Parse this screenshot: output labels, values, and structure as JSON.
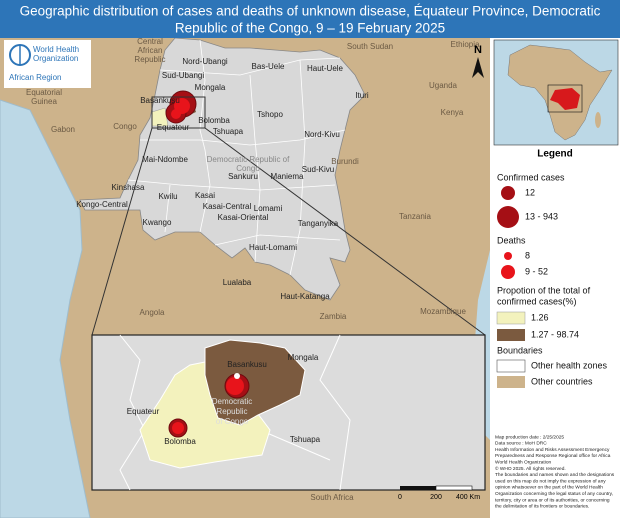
{
  "title": [
    "Geographic distribution of cases and deaths of unknown disease, Équateur Province, Democratic",
    "Republic of the Congo, 9 – 19 February 2025"
  ],
  "logo": {
    "name": [
      "World Health",
      "Organization"
    ],
    "region": "African Region"
  },
  "north": "N",
  "countries": [
    [
      "Central",
      "African",
      "Republic"
    ],
    [
      "South Sudan"
    ],
    [
      "Ethiopia"
    ],
    [
      "Uganda"
    ],
    [
      "Kenya"
    ],
    [
      "Equatorial",
      "Guinea"
    ],
    [
      "Gabon"
    ],
    [
      "Congo"
    ],
    [
      "Burundi"
    ],
    [
      "Tanzania"
    ],
    [
      "Angola"
    ],
    [
      "Zambia"
    ],
    [
      "Mozambique"
    ],
    [
      "South Africa"
    ]
  ],
  "provinces": [
    "Nord-Ubangi",
    "Bas-Uele",
    "Haut-Uele",
    "Sud-Ubangi",
    "Mongala",
    "Ituri",
    "Basankusu",
    "Tshopo",
    "Bolomba",
    "Equateur",
    "Tshuapa",
    "Nord-Kivu",
    "Mai-Ndombe",
    "Sankuru",
    "Maniema",
    "Sud-Kivu",
    "Kinshasa",
    "Kwilu",
    "Kasai",
    "Kasai-Central",
    "Lomami",
    "Kongo-Central",
    "Kwango",
    "Kasai-Oriental",
    "Tanganyika",
    "Haut-Lomami",
    "Lualaba",
    "Haut-Katanga"
  ],
  "country_label": [
    "Democratic Republic of",
    "Congo"
  ],
  "inset": {
    "labels": [
      "Basankusu",
      "Mongala",
      "Equateur",
      "Bolomba",
      "Tshuapa"
    ],
    "country": [
      "Democratic",
      "Republic",
      "of Congo"
    ]
  },
  "legend": {
    "title": "Legend",
    "confirmed": {
      "title": "Confirmed cases",
      "items": [
        "12",
        "13 - 943"
      ]
    },
    "deaths": {
      "title": "Deaths",
      "items": [
        "8",
        "9 - 52"
      ]
    },
    "proportion": {
      "title": [
        "Propotion of the total of",
        "confirmed cases(%)"
      ],
      "items": [
        "1.26",
        "1.27 - 98.74"
      ]
    },
    "boundaries": {
      "title": "Boundaries",
      "items": [
        "Other health zones",
        "Other countries"
      ]
    }
  },
  "notes": [
    "Map production date : 2/25/2025",
    "Data source : MoH DRC",
    "Health Information and Risks Assessment Emergency",
    "Preparedness and Response Regional office for Africa",
    "World Health Organization",
    "© WHO 2025. All rights reserved.",
    "The boundaries and names shown and the designations",
    "used on this map do not imply the expression of any",
    "opinion whatsoever on the part of the World Health",
    "Organization concerning the legal status of any country,",
    "territory, city or area or of its authorities, or concerning",
    "the delimitation of its frontiers or boundaries."
  ],
  "scale": [
    "0",
    "200",
    "400 Km"
  ]
}
